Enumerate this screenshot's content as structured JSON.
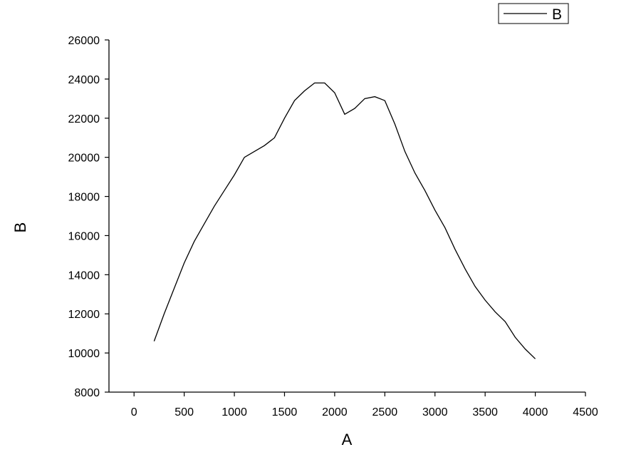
{
  "chart_data": {
    "type": "line",
    "x_label": "A",
    "y_label": "B",
    "x": [
      200,
      300,
      400,
      500,
      600,
      700,
      800,
      900,
      1000,
      1100,
      1200,
      1300,
      1400,
      1500,
      1600,
      1700,
      1800,
      1900,
      2000,
      2100,
      2200,
      2300,
      2400,
      2500,
      2600,
      2700,
      2800,
      2900,
      3000,
      3100,
      3200,
      3300,
      3400,
      3500,
      3600,
      3700,
      3800,
      3900,
      4000
    ],
    "series": [
      {
        "name": "B",
        "color": "#000000",
        "values": [
          10600,
          12000,
          13300,
          14600,
          15700,
          16600,
          17500,
          18300,
          19100,
          20000,
          20300,
          20600,
          21000,
          22000,
          22900,
          23400,
          23800,
          23800,
          23300,
          22200,
          22500,
          23000,
          23100,
          22900,
          21700,
          20300,
          19200,
          18300,
          17300,
          16400,
          15300,
          14300,
          13400,
          12700,
          12100,
          11600,
          10800,
          10200,
          9700
        ]
      }
    ],
    "xlim": [
      -250,
      4500
    ],
    "xticks": [
      0,
      500,
      1000,
      1500,
      2000,
      2500,
      3000,
      3500,
      4000,
      4500
    ],
    "ylim": [
      8000,
      26000
    ],
    "yticks": [
      8000,
      10000,
      12000,
      14000,
      16000,
      18000,
      20000,
      22000,
      24000,
      26000
    ],
    "legend": "top-right"
  }
}
